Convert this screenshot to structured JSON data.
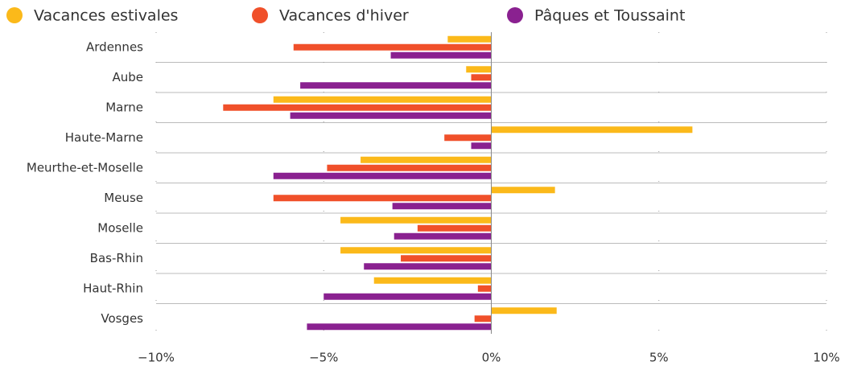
{
  "chart_data": {
    "type": "barh",
    "categories": [
      "Ardennes",
      "Aube",
      "Marne",
      "Haute-Marne",
      "Meurthe-et-Moselle",
      "Meuse",
      "Moselle",
      "Bas-Rhin",
      "Haut-Rhin",
      "Vosges"
    ],
    "series": [
      {
        "name": "Vacances estivales",
        "color": "#fbb91a",
        "values": [
          -1.3,
          -0.75,
          -6.5,
          6.0,
          -3.9,
          1.9,
          -4.5,
          -4.5,
          -3.5,
          1.95
        ]
      },
      {
        "name": "Vacances d'hiver",
        "color": "#f0502a",
        "values": [
          -5.9,
          -0.6,
          -8.0,
          -1.4,
          -4.9,
          -6.5,
          -2.2,
          -2.7,
          -0.4,
          -0.5
        ]
      },
      {
        "name": "Pâques et Toussaint",
        "color": "#8a2190",
        "values": [
          -3.0,
          -5.7,
          -6.0,
          -0.6,
          -6.5,
          -2.95,
          -2.9,
          -3.8,
          -5.0,
          -5.5
        ]
      }
    ],
    "xlim": [
      -10,
      10
    ],
    "xticks": [
      {
        "value": -10,
        "label": "−10%"
      },
      {
        "value": -5,
        "label": "−5%"
      },
      {
        "value": 0,
        "label": "0%"
      },
      {
        "value": 5,
        "label": "5%"
      },
      {
        "value": 10,
        "label": "10%"
      }
    ],
    "grid": true
  }
}
